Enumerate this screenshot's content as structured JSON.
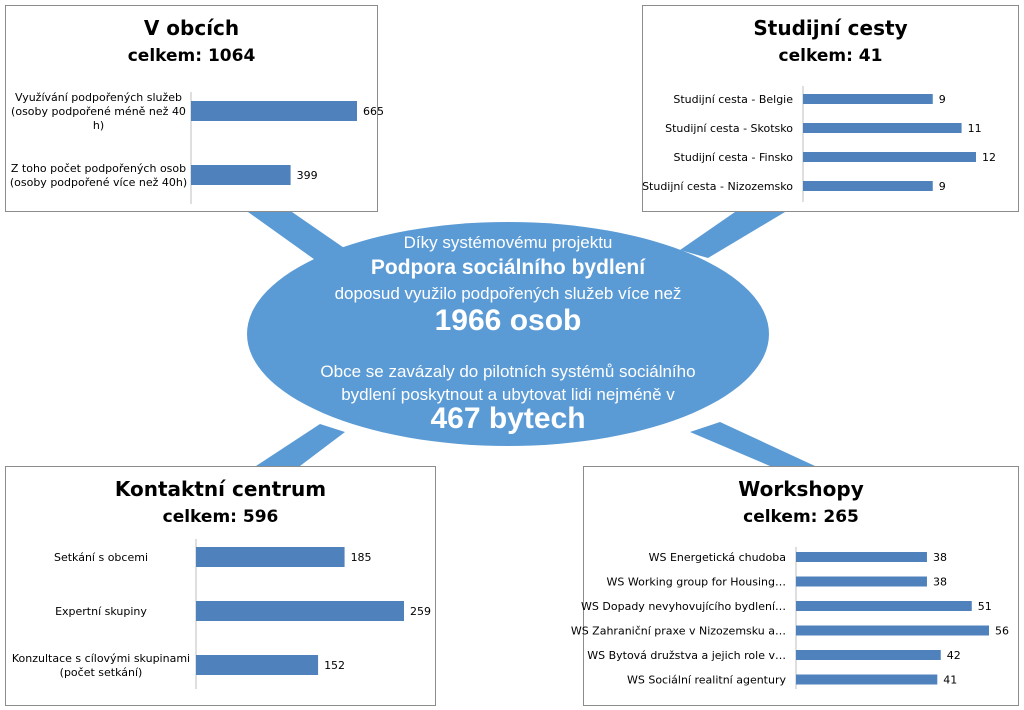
{
  "colors": {
    "bar": "#4f81bd",
    "ellipse": "#5b9bd5",
    "connector": "#5b9bd5",
    "panel_border": "#8c8c8c"
  },
  "center": {
    "line1": "Díky systémovému projektu",
    "line2": "Podpora sociálního bydlení",
    "line3": "doposud využilo podpořených služeb více než",
    "line4": "1966 osob",
    "line5": "Obce se zavázaly do pilotních systémů sociálního",
    "line6": "bydlení poskytnout a ubytovat lidi nejméně v",
    "line7": "467 bytech"
  },
  "chart_data": [
    {
      "type": "bar",
      "orientation": "horizontal",
      "title": "V obcích",
      "subtitle": "celkem: 1064",
      "categories": [
        "Využívání podpořených služeb (osoby podpořené méně než 40 h)",
        "Z toho počet podpořených osob (osoby podpořené více než 40h)"
      ],
      "category_lines": [
        [
          "Využívání podpořených služeb",
          "(osoby podpořené méně než 40",
          "h)"
        ],
        [
          "Z toho počet podpořených osob",
          "(osoby podpořené více než 40h)"
        ]
      ],
      "values": [
        665,
        399
      ],
      "data_labels": [
        "665",
        "399"
      ]
    },
    {
      "type": "bar",
      "orientation": "horizontal",
      "title": "Studijní cesty",
      "subtitle": "celkem: 41",
      "categories": [
        "Studijní cesta - Belgie",
        "Studijní cesta - Skotsko",
        "Studijní cesta - Finsko",
        "Studijní cesta - Nizozemsko"
      ],
      "category_lines": [
        [
          "Studijní cesta - Belgie"
        ],
        [
          "Studijní cesta - Skotsko"
        ],
        [
          "Studijní cesta - Finsko"
        ],
        [
          "Studijní cesta - Nizozemsko"
        ]
      ],
      "values": [
        9,
        11,
        12,
        9
      ],
      "data_labels": [
        "9",
        "11",
        "12",
        "9"
      ]
    },
    {
      "type": "bar",
      "orientation": "horizontal",
      "title": "Kontaktní centrum",
      "subtitle": "celkem: 596",
      "categories": [
        "Setkání s obcemi",
        "Expertní skupiny",
        "Konzultace s cílovými skupinami (počet setkání)"
      ],
      "category_lines": [
        [
          "Setkání s obcemi"
        ],
        [
          "Expertní skupiny"
        ],
        [
          "Konzultace s cílovými skupinami",
          "(počet setkání)"
        ]
      ],
      "values": [
        185,
        259,
        152
      ],
      "data_labels": [
        "185",
        "259",
        "152"
      ]
    },
    {
      "type": "bar",
      "orientation": "horizontal",
      "title": "Workshopy",
      "subtitle": "celkem: 265",
      "categories": [
        "WS Energetická chudoba",
        "WS Working group for Housing…",
        "WS Dopady nevyhovujícího bydlení…",
        "WS Zahraniční praxe v Nizozemsku a…",
        "WS Bytová družstva a jejich role v…",
        "WS Sociální realitní agentury"
      ],
      "category_lines": [
        [
          "WS Energetická chudoba"
        ],
        [
          "WS Working group for Housing…"
        ],
        [
          "WS Dopady nevyhovujícího bydlení…"
        ],
        [
          "WS Zahraniční praxe v Nizozemsku a…"
        ],
        [
          "WS Bytová družstva a jejich role v…"
        ],
        [
          "WS Sociální realitní agentury"
        ]
      ],
      "values": [
        38,
        38,
        51,
        56,
        42,
        41
      ],
      "data_labels": [
        "38",
        "38",
        "51",
        "56",
        "42",
        "41"
      ]
    }
  ]
}
